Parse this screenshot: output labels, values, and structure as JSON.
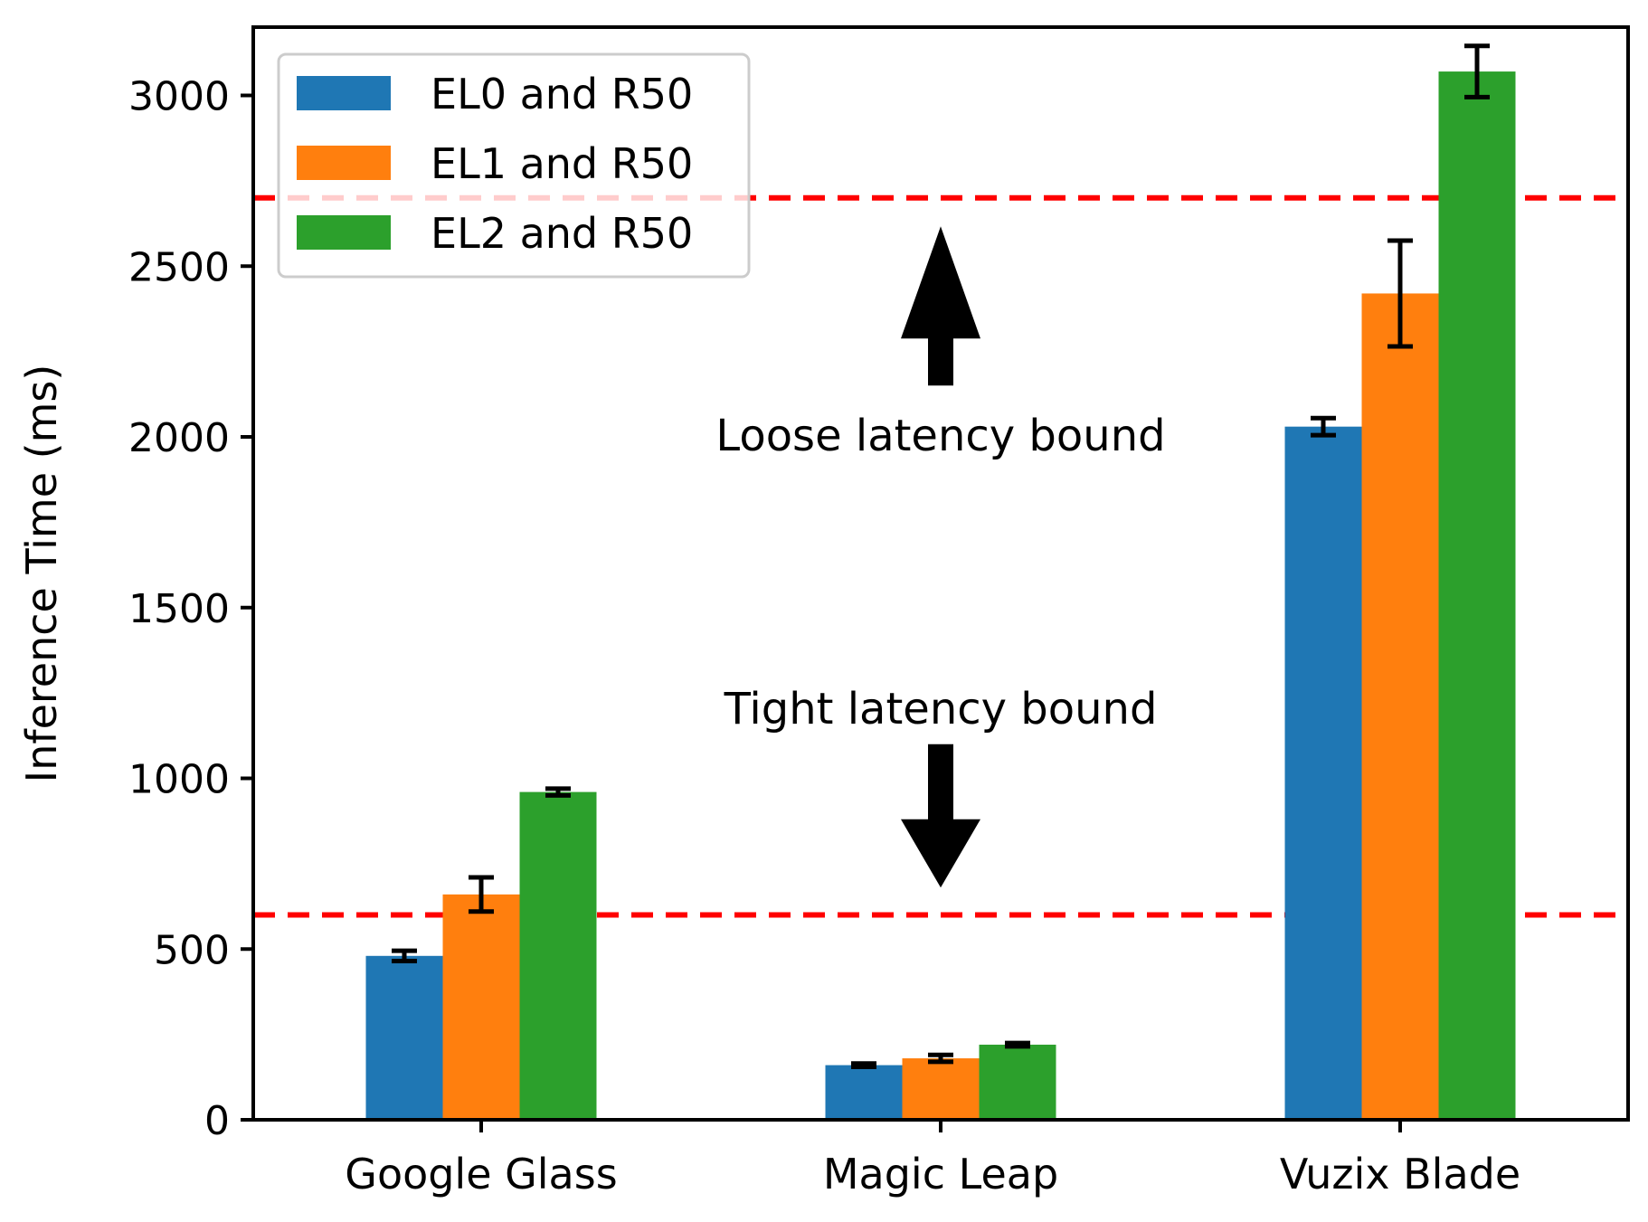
{
  "chart_data": {
    "type": "bar",
    "title": "",
    "xlabel": "",
    "ylabel": "Inference Time (ms)",
    "ylim": [
      0,
      3200
    ],
    "yticks": [
      0,
      500,
      1000,
      1500,
      2000,
      2500,
      3000
    ],
    "categories": [
      "Google Glass",
      "Magic Leap",
      "Vuzix Blade"
    ],
    "series": [
      {
        "name": "EL0 and R50",
        "color": "#1f77b4",
        "values": [
          480,
          160,
          2030
        ],
        "errors": [
          15,
          5,
          25
        ]
      },
      {
        "name": "EL1 and R50",
        "color": "#ff7f0e",
        "values": [
          660,
          180,
          2420
        ],
        "errors": [
          50,
          10,
          155
        ]
      },
      {
        "name": "EL2 and R50",
        "color": "#2ca02c",
        "values": [
          960,
          220,
          3070
        ],
        "errors": [
          10,
          5,
          75
        ]
      }
    ],
    "legend_position": "top-left",
    "reference_lines": [
      {
        "name": "loose",
        "value": 2700,
        "color": "#ff0000",
        "style": "dashed"
      },
      {
        "name": "tight",
        "value": 600,
        "color": "#ff0000",
        "style": "dashed"
      }
    ],
    "annotations": [
      {
        "name": "loose",
        "text": "Loose latency bound",
        "arrow": "up"
      },
      {
        "name": "tight",
        "text": "Tight latency bound",
        "arrow": "down"
      }
    ]
  }
}
